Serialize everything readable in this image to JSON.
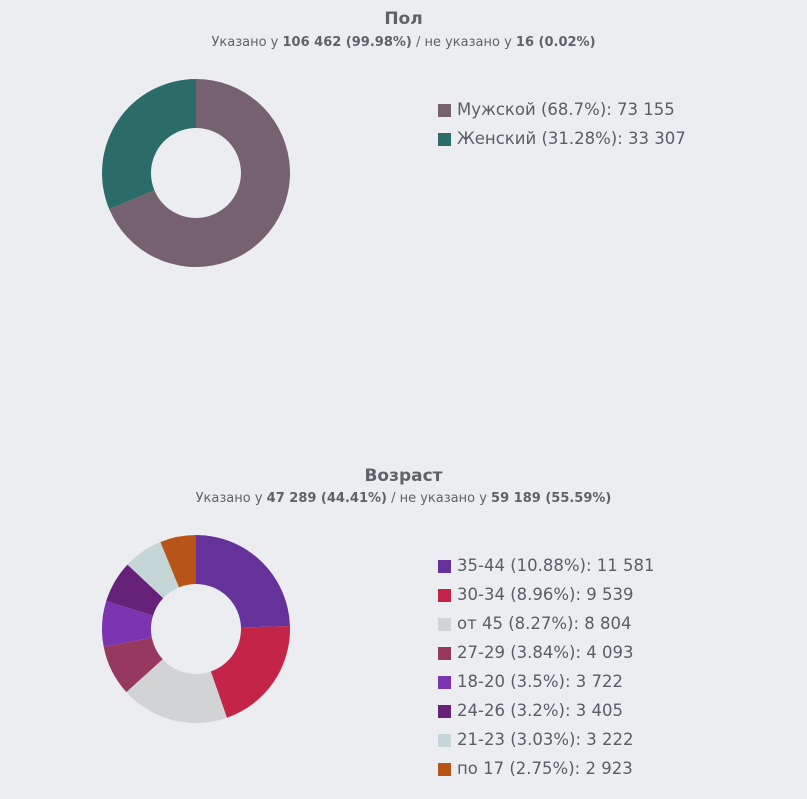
{
  "chart_data": [
    {
      "type": "pie",
      "donut": true,
      "title": "Пол",
      "subtitle": {
        "prefix": "Указано у ",
        "specified": "106 462 (99.98%)",
        "middle": " / не указано у ",
        "unspecified": "16 (0.02%)"
      },
      "legend_placement": "right",
      "slices": [
        {
          "label": "Мужской (68.7%): 73 155",
          "name": "Мужской",
          "percent": 68.7,
          "value": 73155,
          "color": "#76616f"
        },
        {
          "label": "Женский (31.28%): 33 307",
          "name": "Женский",
          "percent": 31.28,
          "value": 33307,
          "color": "#2b6b68"
        }
      ]
    },
    {
      "type": "pie",
      "donut": true,
      "title": "Возраст",
      "subtitle": {
        "prefix": "Указано у ",
        "specified": "47 289 (44.41%)",
        "middle": " / не указано у ",
        "unspecified": "59 189 (55.59%)"
      },
      "legend_placement": "right",
      "slices": [
        {
          "label": "35-44 (10.88%): 11 581",
          "name": "35-44",
          "percent": 10.88,
          "value": 11581,
          "color": "#65329c"
        },
        {
          "label": "30-34 (8.96%): 9 539",
          "name": "30-34",
          "percent": 8.96,
          "value": 9539,
          "color": "#c42448"
        },
        {
          "label": "от 45 (8.27%): 8 804",
          "name": "от 45",
          "percent": 8.27,
          "value": 8804,
          "color": "#d1d3d4"
        },
        {
          "label": "27-29 (3.84%): 4 093",
          "name": "27-29",
          "percent": 3.84,
          "value": 4093,
          "color": "#97395f"
        },
        {
          "label": "18-20 (3.5%): 3 722",
          "name": "18-20",
          "percent": 3.5,
          "value": 3722,
          "color": "#7c35b1"
        },
        {
          "label": "24-26 (3.2%): 3 405",
          "name": "24-26",
          "percent": 3.2,
          "value": 3405,
          "color": "#662179"
        },
        {
          "label": "21-23 (3.03%): 3 222",
          "name": "21-23",
          "percent": 3.03,
          "value": 3222,
          "color": "#c4d6d5"
        },
        {
          "label": "по 17 (2.75%): 2 923",
          "name": "по 17",
          "percent": 2.75,
          "value": 2923,
          "color": "#b85418"
        }
      ]
    }
  ]
}
